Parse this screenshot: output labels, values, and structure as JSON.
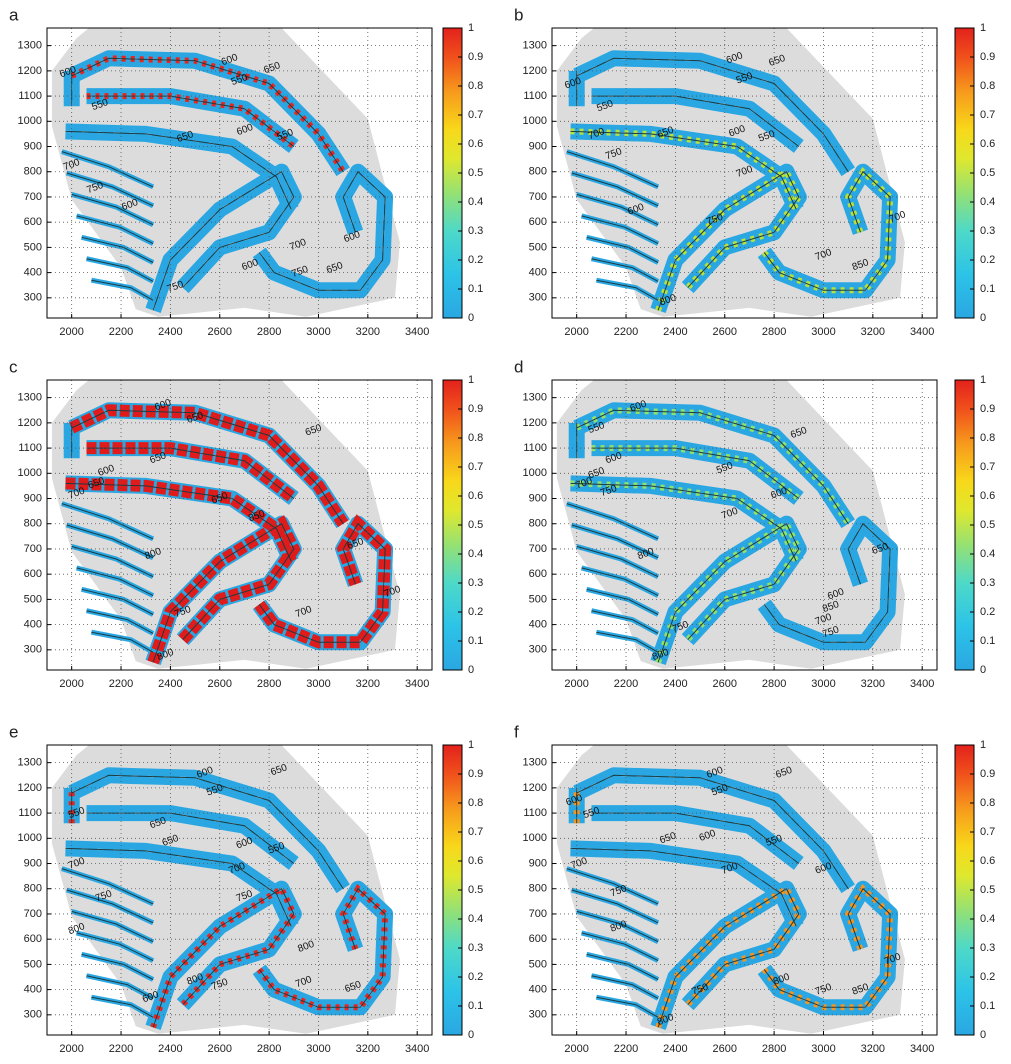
{
  "chart_data": [
    {
      "type": "contour-map",
      "panel": "a",
      "xlim": [
        1900,
        3460
      ],
      "ylim": [
        220,
        1370
      ],
      "xticks": [
        2000,
        2200,
        2400,
        2600,
        2800,
        3000,
        3200,
        3400
      ],
      "yticks": [
        300,
        400,
        500,
        600,
        700,
        800,
        900,
        1000,
        1100,
        1200,
        1300
      ],
      "colorbar_lim": [
        0,
        1
      ],
      "colorbar_ticks": [
        0,
        0.1,
        0.2,
        0.3,
        0.4,
        0.5,
        0.6,
        0.7,
        0.8,
        0.9,
        1
      ],
      "grid": true,
      "highlight_color": "#e8261f",
      "contour_labels": [
        {
          "text": "600",
          "x": 1985,
          "y": 1195
        },
        {
          "text": "600",
          "x": 2640,
          "y": 1243
        },
        {
          "text": "650",
          "x": 2812,
          "y": 1211
        },
        {
          "text": "550",
          "x": 2680,
          "y": 1164
        },
        {
          "text": "550",
          "x": 2115,
          "y": 1065
        },
        {
          "text": "650",
          "x": 2460,
          "y": 938
        },
        {
          "text": "600",
          "x": 2702,
          "y": 966
        },
        {
          "text": "550",
          "x": 2865,
          "y": 946
        },
        {
          "text": "700",
          "x": 2000,
          "y": 827
        },
        {
          "text": "750",
          "x": 2095,
          "y": 736
        },
        {
          "text": "600",
          "x": 2236,
          "y": 668
        },
        {
          "text": "700",
          "x": 2917,
          "y": 510
        },
        {
          "text": "750",
          "x": 2925,
          "y": 403
        },
        {
          "text": "600",
          "x": 2723,
          "y": 430
        },
        {
          "text": "750",
          "x": 2420,
          "y": 343
        },
        {
          "text": "600",
          "x": 3136,
          "y": 541
        },
        {
          "text": "650",
          "x": 3066,
          "y": 418
        }
      ]
    },
    {
      "type": "contour-map",
      "panel": "b",
      "xlim": [
        1900,
        3460
      ],
      "ylim": [
        220,
        1370
      ],
      "xticks": [
        2000,
        2200,
        2400,
        2600,
        2800,
        3000,
        3200,
        3400
      ],
      "yticks": [
        300,
        400,
        500,
        600,
        700,
        800,
        900,
        1000,
        1100,
        1200,
        1300
      ],
      "colorbar_lim": [
        0,
        1
      ],
      "colorbar_ticks": [
        0,
        0.1,
        0.2,
        0.3,
        0.4,
        0.5,
        0.6,
        0.7,
        0.8,
        0.9,
        1
      ],
      "grid": true,
      "highlight_color": "#b6e23a",
      "contour_labels": [
        {
          "text": "600",
          "x": 1985,
          "y": 1150
        },
        {
          "text": "600",
          "x": 2640,
          "y": 1250
        },
        {
          "text": "650",
          "x": 2812,
          "y": 1240
        },
        {
          "text": "550",
          "x": 2680,
          "y": 1170
        },
        {
          "text": "550",
          "x": 2115,
          "y": 1060
        },
        {
          "text": "650",
          "x": 2360,
          "y": 955
        },
        {
          "text": "700",
          "x": 2080,
          "y": 950
        },
        {
          "text": "600",
          "x": 2650,
          "y": 960
        },
        {
          "text": "550",
          "x": 2770,
          "y": 940
        },
        {
          "text": "750",
          "x": 2150,
          "y": 870
        },
        {
          "text": "700",
          "x": 2680,
          "y": 800
        },
        {
          "text": "600",
          "x": 2240,
          "y": 650
        },
        {
          "text": "750",
          "x": 2560,
          "y": 610
        },
        {
          "text": "700",
          "x": 3000,
          "y": 470
        },
        {
          "text": "850",
          "x": 3150,
          "y": 430
        },
        {
          "text": "800",
          "x": 2370,
          "y": 290
        },
        {
          "text": "700",
          "x": 3300,
          "y": 620
        }
      ]
    },
    {
      "type": "contour-map",
      "panel": "c",
      "xlim": [
        1900,
        3460
      ],
      "ylim": [
        220,
        1370
      ],
      "xticks": [
        2000,
        2200,
        2400,
        2600,
        2800,
        3000,
        3200,
        3400
      ],
      "yticks": [
        300,
        400,
        500,
        600,
        700,
        800,
        900,
        1000,
        1100,
        1200,
        1300
      ],
      "colorbar_lim": [
        0,
        1
      ],
      "colorbar_ticks": [
        0,
        0.1,
        0.2,
        0.3,
        0.4,
        0.5,
        0.6,
        0.7,
        0.8,
        0.9,
        1
      ],
      "grid": true,
      "highlight_color": "#e01b1b",
      "contour_labels": [
        {
          "text": "600",
          "x": 2370,
          "y": 1270
        },
        {
          "text": "650",
          "x": 2500,
          "y": 1220
        },
        {
          "text": "650",
          "x": 2980,
          "y": 1170
        },
        {
          "text": "650",
          "x": 2350,
          "y": 1060
        },
        {
          "text": "600",
          "x": 2140,
          "y": 1010
        },
        {
          "text": "650",
          "x": 2100,
          "y": 960
        },
        {
          "text": "700",
          "x": 2020,
          "y": 920
        },
        {
          "text": "650",
          "x": 2600,
          "y": 900
        },
        {
          "text": "850",
          "x": 2750,
          "y": 830
        },
        {
          "text": "800",
          "x": 2330,
          "y": 680
        },
        {
          "text": "650",
          "x": 3150,
          "y": 720
        },
        {
          "text": "700",
          "x": 2940,
          "y": 450
        },
        {
          "text": "750",
          "x": 2450,
          "y": 450
        },
        {
          "text": "800",
          "x": 2380,
          "y": 280
        },
        {
          "text": "700",
          "x": 3300,
          "y": 530
        }
      ]
    },
    {
      "type": "contour-map",
      "panel": "d",
      "xlim": [
        1900,
        3460
      ],
      "ylim": [
        220,
        1370
      ],
      "xticks": [
        2000,
        2200,
        2400,
        2600,
        2800,
        3000,
        3200,
        3400
      ],
      "yticks": [
        300,
        400,
        500,
        600,
        700,
        800,
        900,
        1000,
        1100,
        1200,
        1300
      ],
      "colorbar_lim": [
        0,
        1
      ],
      "colorbar_ticks": [
        0,
        0.1,
        0.2,
        0.3,
        0.4,
        0.5,
        0.6,
        0.7,
        0.8,
        0.9,
        1
      ],
      "grid": true,
      "highlight_color": "#8ee26a",
      "contour_labels": [
        {
          "text": "600",
          "x": 2250,
          "y": 1265
        },
        {
          "text": "550",
          "x": 2080,
          "y": 1180
        },
        {
          "text": "650",
          "x": 2900,
          "y": 1160
        },
        {
          "text": "600",
          "x": 2150,
          "y": 1060
        },
        {
          "text": "650",
          "x": 2080,
          "y": 1000
        },
        {
          "text": "700",
          "x": 2030,
          "y": 960
        },
        {
          "text": "750",
          "x": 2130,
          "y": 930
        },
        {
          "text": "550",
          "x": 2600,
          "y": 1020
        },
        {
          "text": "600",
          "x": 2820,
          "y": 920
        },
        {
          "text": "700",
          "x": 2620,
          "y": 840
        },
        {
          "text": "800",
          "x": 2280,
          "y": 680
        },
        {
          "text": "650",
          "x": 3230,
          "y": 700
        },
        {
          "text": "600",
          "x": 3050,
          "y": 520
        },
        {
          "text": "850",
          "x": 3030,
          "y": 470
        },
        {
          "text": "700",
          "x": 3000,
          "y": 420
        },
        {
          "text": "750",
          "x": 2420,
          "y": 390
        },
        {
          "text": "800",
          "x": 2340,
          "y": 280
        },
        {
          "text": "750",
          "x": 3030,
          "y": 370
        }
      ]
    },
    {
      "type": "contour-map",
      "panel": "e",
      "xlim": [
        1900,
        3460
      ],
      "ylim": [
        220,
        1370
      ],
      "xticks": [
        2000,
        2200,
        2400,
        2600,
        2800,
        3000,
        3200,
        3400
      ],
      "yticks": [
        300,
        400,
        500,
        600,
        700,
        800,
        900,
        1000,
        1100,
        1200,
        1300
      ],
      "colorbar_lim": [
        0,
        1
      ],
      "colorbar_ticks": [
        0,
        0.1,
        0.2,
        0.3,
        0.4,
        0.5,
        0.6,
        0.7,
        0.8,
        0.9,
        1
      ],
      "grid": true,
      "highlight_color": "#e8261f",
      "contour_labels": [
        {
          "text": "600",
          "x": 2540,
          "y": 1260
        },
        {
          "text": "550",
          "x": 2580,
          "y": 1190
        },
        {
          "text": "650",
          "x": 2840,
          "y": 1270
        },
        {
          "text": "550",
          "x": 2020,
          "y": 1100
        },
        {
          "text": "650",
          "x": 2350,
          "y": 1060
        },
        {
          "text": "650",
          "x": 2400,
          "y": 990
        },
        {
          "text": "600",
          "x": 2700,
          "y": 980
        },
        {
          "text": "550",
          "x": 2830,
          "y": 960
        },
        {
          "text": "700",
          "x": 2020,
          "y": 900
        },
        {
          "text": "700",
          "x": 2670,
          "y": 880
        },
        {
          "text": "750",
          "x": 2130,
          "y": 770
        },
        {
          "text": "750",
          "x": 2700,
          "y": 770
        },
        {
          "text": "800",
          "x": 2020,
          "y": 640
        },
        {
          "text": "800",
          "x": 2950,
          "y": 570
        },
        {
          "text": "700",
          "x": 2940,
          "y": 430
        },
        {
          "text": "800",
          "x": 2500,
          "y": 440
        },
        {
          "text": "750",
          "x": 2600,
          "y": 420
        },
        {
          "text": "600",
          "x": 2320,
          "y": 370
        },
        {
          "text": "650",
          "x": 3140,
          "y": 410
        }
      ]
    },
    {
      "type": "contour-map",
      "panel": "f",
      "xlim": [
        1900,
        3460
      ],
      "ylim": [
        220,
        1370
      ],
      "xticks": [
        2000,
        2200,
        2400,
        2600,
        2800,
        3000,
        3200,
        3400
      ],
      "yticks": [
        300,
        400,
        500,
        600,
        700,
        800,
        900,
        1000,
        1100,
        1200,
        1300
      ],
      "colorbar_lim": [
        0,
        1
      ],
      "colorbar_ticks": [
        0,
        0.1,
        0.2,
        0.3,
        0.4,
        0.5,
        0.6,
        0.7,
        0.8,
        0.9,
        1
      ],
      "grid": true,
      "highlight_color": "#f5941e",
      "contour_labels": [
        {
          "text": "600",
          "x": 2560,
          "y": 1260
        },
        {
          "text": "650",
          "x": 2840,
          "y": 1260
        },
        {
          "text": "550",
          "x": 2580,
          "y": 1190
        },
        {
          "text": "550",
          "x": 2060,
          "y": 1100
        },
        {
          "text": "600",
          "x": 1990,
          "y": 1150
        },
        {
          "text": "650",
          "x": 2370,
          "y": 1000
        },
        {
          "text": "600",
          "x": 2530,
          "y": 1010
        },
        {
          "text": "550",
          "x": 2800,
          "y": 990
        },
        {
          "text": "700",
          "x": 2010,
          "y": 900
        },
        {
          "text": "750",
          "x": 2170,
          "y": 790
        },
        {
          "text": "700",
          "x": 2620,
          "y": 880
        },
        {
          "text": "800",
          "x": 2170,
          "y": 650
        },
        {
          "text": "600",
          "x": 3000,
          "y": 880
        },
        {
          "text": "750",
          "x": 2500,
          "y": 400
        },
        {
          "text": "800",
          "x": 2830,
          "y": 440
        },
        {
          "text": "750",
          "x": 3000,
          "y": 400
        },
        {
          "text": "850",
          "x": 3150,
          "y": 400
        },
        {
          "text": "800",
          "x": 2360,
          "y": 280
        },
        {
          "text": "700",
          "x": 3280,
          "y": 520
        }
      ]
    }
  ]
}
